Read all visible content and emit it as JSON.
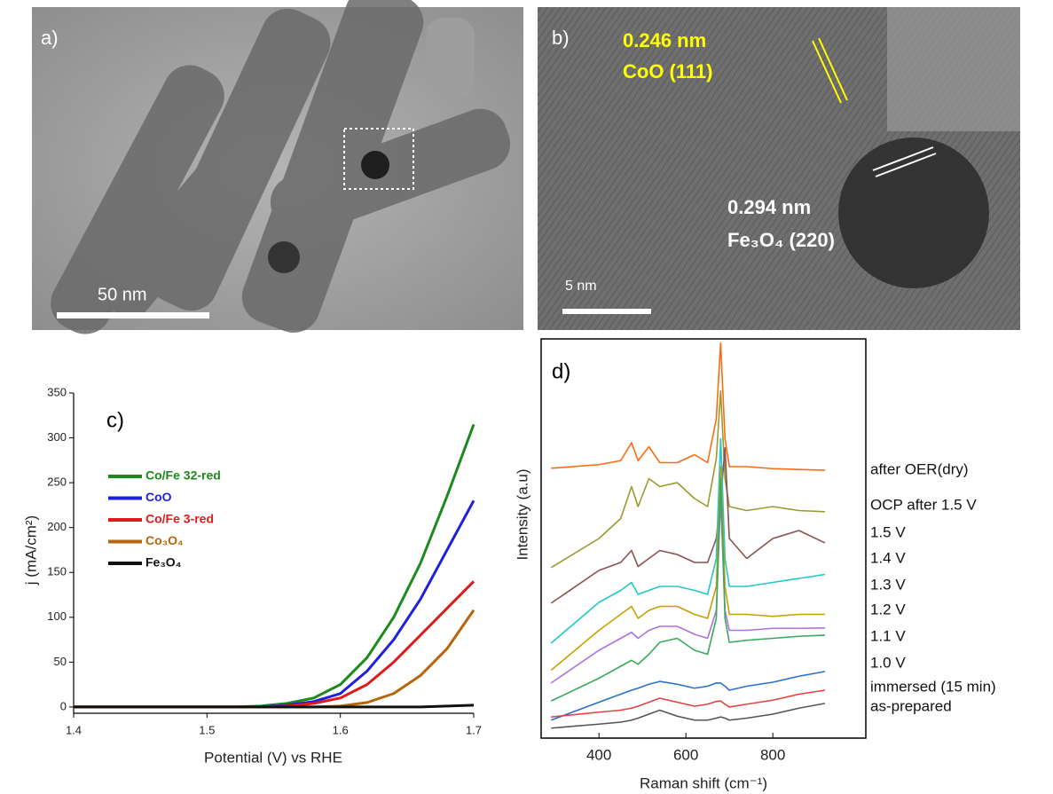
{
  "images": [
    {
      "label": "a)",
      "scale_bar": "50 nm"
    },
    {
      "label": "b)",
      "scale_bar": "5 nm",
      "annotations": [
        "0.246 nm",
        "CoO (111)",
        "0.294 nm",
        "Fe₃O₄ (220)"
      ]
    }
  ],
  "chart_data": [
    {
      "type": "line",
      "label": "c)",
      "xlabel": "Potential (V) vs RHE",
      "ylabel": "j (mA/cm²)",
      "x": [
        1.4,
        1.45,
        1.5,
        1.52,
        1.54,
        1.56,
        1.58,
        1.6,
        1.62,
        1.64,
        1.66,
        1.68,
        1.7
      ],
      "series": [
        {
          "name": "Co/Fe 32-red",
          "color": "#1a8a1a",
          "values": [
            0,
            0,
            0,
            0,
            1,
            4,
            10,
            25,
            55,
            100,
            160,
            235,
            315
          ]
        },
        {
          "name": "CoO",
          "color": "#1f1fe0",
          "values": [
            0,
            0,
            0,
            0,
            0,
            2,
            6,
            15,
            40,
            75,
            120,
            175,
            230
          ]
        },
        {
          "name": "Co/Fe 3-red",
          "color": "#e01a1a",
          "values": [
            0,
            0,
            0,
            0,
            0,
            1,
            4,
            10,
            25,
            50,
            80,
            110,
            140
          ]
        },
        {
          "name": "Co₃O₄",
          "color": "#b8650a",
          "values": [
            0,
            0,
            0,
            0,
            0,
            0,
            0,
            1,
            5,
            15,
            35,
            65,
            108
          ]
        },
        {
          "name": "Fe₃O₄",
          "color": "#111111",
          "values": [
            0,
            0,
            0,
            0,
            0,
            0,
            0,
            0,
            0,
            0,
            0,
            1,
            2
          ]
        }
      ],
      "xlim": [
        1.4,
        1.7
      ],
      "xticks": [
        1.4,
        1.5,
        1.6,
        1.7
      ],
      "ylim": [
        -7,
        350
      ],
      "yticks": [
        0,
        50,
        100,
        150,
        200,
        250,
        300,
        350
      ]
    },
    {
      "type": "line",
      "label": "d)",
      "xlabel": "Raman shift (cm⁻¹)",
      "ylabel": "Intensity (a.u)",
      "x": [
        290,
        400,
        450,
        475,
        490,
        515,
        540,
        580,
        620,
        650,
        670,
        680,
        690,
        700,
        740,
        800,
        860,
        920
      ],
      "series": [
        {
          "name": "after OER(dry)",
          "color": "#ff6a10",
          "values": [
            67.6,
            68.5,
            69.5,
            74,
            69.5,
            73,
            69,
            69,
            71,
            69,
            80,
            99,
            75,
            68,
            68,
            67.5,
            67.3,
            67.1
          ]
        },
        {
          "name": "OCP after 1.5 V",
          "color": "#9a9a30",
          "values": [
            42.7,
            50,
            55,
            63,
            58,
            65,
            63,
            64,
            60,
            58,
            70,
            87,
            65,
            58,
            57,
            58,
            57,
            56.7
          ]
        },
        {
          "name": "1.5 V",
          "color": "#8b5050",
          "values": [
            33.8,
            42,
            44,
            47,
            43,
            45,
            47,
            46,
            44,
            44,
            50,
            60,
            72.7,
            50,
            45,
            50,
            52,
            48.9
          ]
        },
        {
          "name": "1.4 V",
          "color": "#20c8c8",
          "values": [
            23.8,
            34,
            37,
            39,
            36,
            37,
            38,
            38,
            37,
            36,
            45,
            75,
            45,
            38,
            38,
            39,
            40,
            41
          ]
        },
        {
          "name": "1.3 V",
          "color": "#c8a000",
          "values": [
            17,
            27,
            31,
            33,
            30,
            32,
            33,
            33,
            31,
            30,
            38,
            68,
            38,
            31,
            31,
            30.5,
            31,
            31
          ]
        },
        {
          "name": "1.2 V",
          "color": "#b070e0",
          "values": [
            13.8,
            22,
            25,
            26.5,
            25,
            27,
            28,
            28,
            26,
            25,
            32,
            60,
            32,
            27,
            27,
            27.5,
            27.5,
            27.6
          ]
        },
        {
          "name": "1.1 V",
          "color": "#3aa860",
          "values": [
            9.3,
            15,
            18,
            19.5,
            18.5,
            21,
            24,
            25,
            22,
            21,
            30,
            65,
            30,
            24,
            24.5,
            25,
            25.5,
            25.8
          ]
        },
        {
          "name": "1.0 V",
          "color": "#2a70d0",
          "values": [
            4.5,
            9,
            11,
            12,
            12.5,
            13.5,
            14.2,
            13.5,
            12.5,
            13,
            13.8,
            13.8,
            13,
            12,
            13,
            14,
            15.5,
            16.7
          ]
        },
        {
          "name": "immersed (15 min)",
          "color": "#e84040",
          "values": [
            5.3,
            6.5,
            7,
            7.5,
            8,
            9,
            10,
            9,
            8,
            8.5,
            9.2,
            9.3,
            8.5,
            7.8,
            8.5,
            9.5,
            11,
            12
          ]
        },
        {
          "name": "as-prepared",
          "color": "#555555",
          "values": [
            2.5,
            3.5,
            4,
            4.5,
            5,
            6,
            7,
            5.5,
            4.5,
            4.5,
            5,
            5.3,
            5,
            4.5,
            5,
            6,
            7.5,
            8.7
          ]
        }
      ],
      "xlim": [
        267,
        1014
      ],
      "xticks": [
        400,
        600,
        800
      ],
      "ylim": [
        0,
        100
      ]
    }
  ]
}
